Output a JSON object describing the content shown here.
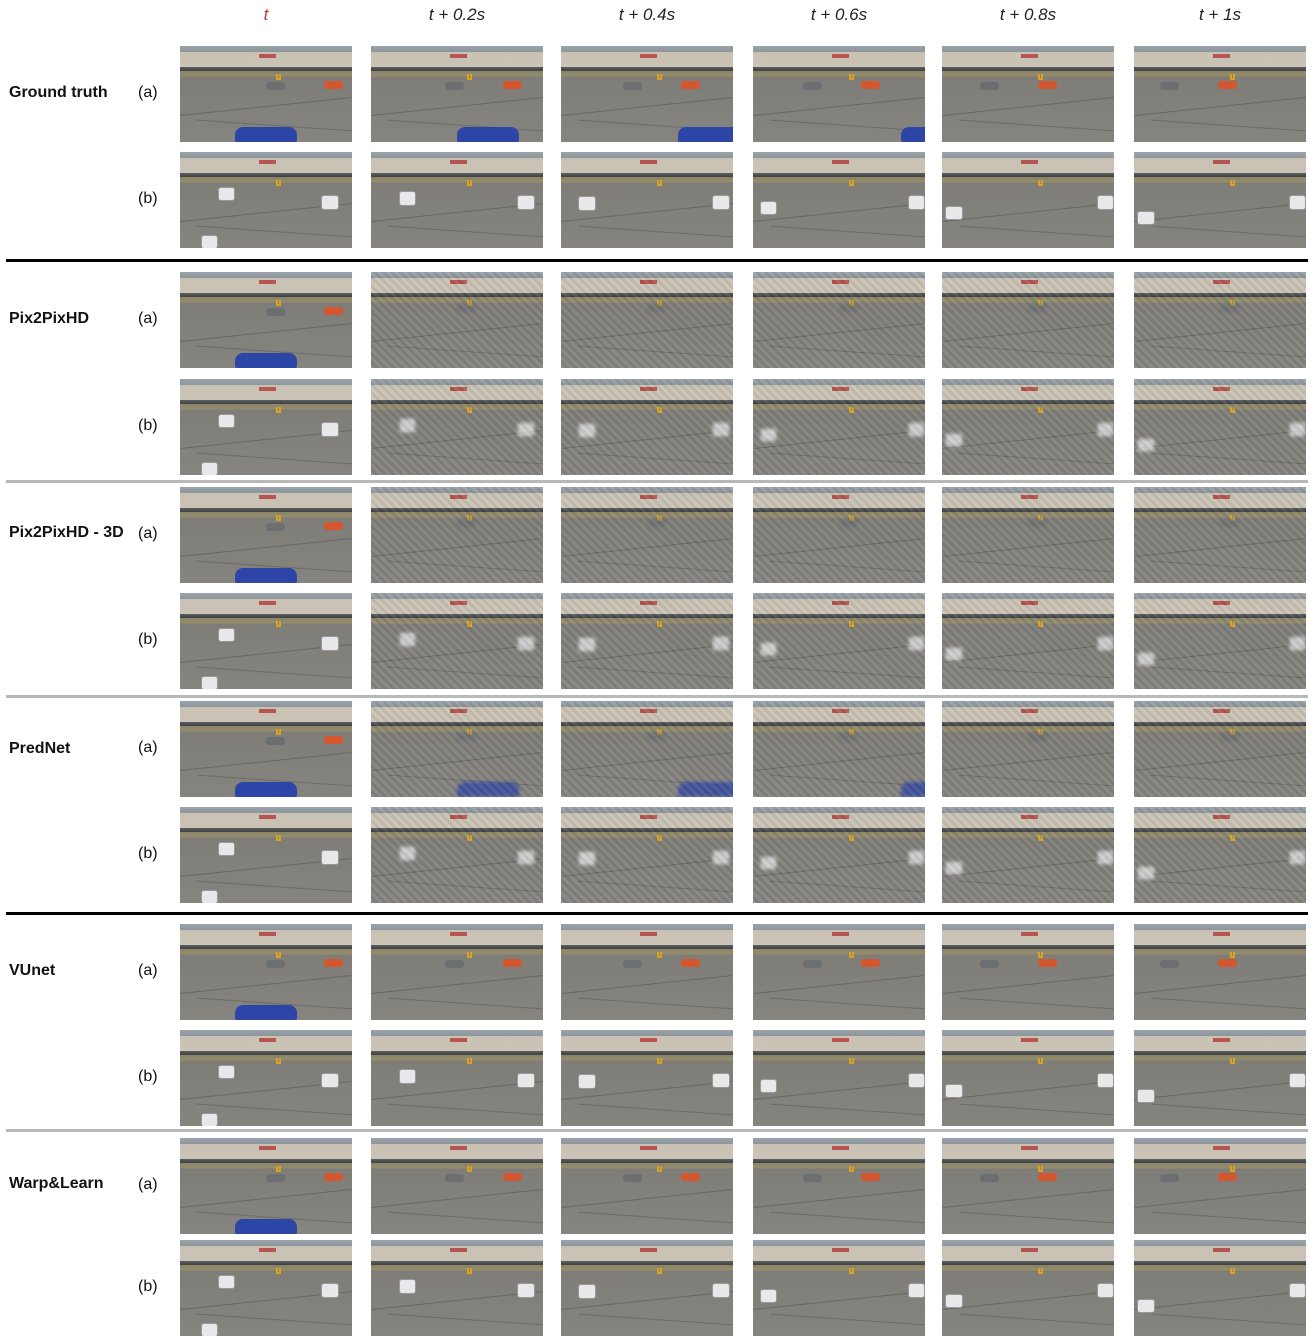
{
  "columns": [
    "t",
    "t + 0.2s",
    "t + 0.4s",
    "t + 0.6s",
    "t + 0.8s",
    "t + 1s"
  ],
  "row_labels": [
    "(a)",
    "(b)"
  ],
  "methods": [
    {
      "name": "Ground truth",
      "a_label": "(a)",
      "b_label": "(b)"
    },
    {
      "name": "Pix2PixHD",
      "a_label": "(a)",
      "b_label": "(b)"
    },
    {
      "name": "Pix2PixHD - 3D",
      "a_label": "(a)",
      "b_label": "(b)"
    },
    {
      "name": "PredNet",
      "a_label": "(a)",
      "b_label": "(b)"
    },
    {
      "name": "VUnet",
      "a_label": "(a)",
      "b_label": "(b)"
    },
    {
      "name": "Warp&Learn",
      "a_label": "(a)",
      "b_label": "(b)"
    }
  ],
  "colors": {
    "first_column_label": "#c0392b",
    "separator_black": "#000000",
    "separator_grey": "#b8b8b8"
  }
}
